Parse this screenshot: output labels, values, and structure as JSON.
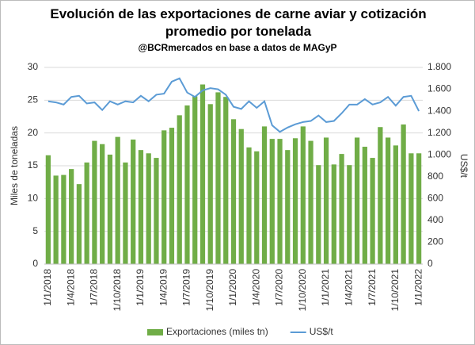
{
  "chart_data": {
    "type": "bar_line",
    "title": "Evolución de las exportaciones de carne aviar y cotización promedio por tonelada",
    "subtitle": "@BCRmercados en base a datos de MAGyP",
    "y_label": "Miles de toneladas",
    "y2_label": "US$/t",
    "categories": [
      "1/1/2018",
      null,
      null,
      "1/4/2018",
      null,
      null,
      "1/7/2018",
      null,
      null,
      "1/10/2018",
      null,
      null,
      "1/1/2019",
      null,
      null,
      "1/4/2019",
      null,
      null,
      "1/7/2019",
      null,
      null,
      "1/10/2019",
      null,
      null,
      "1/1/2020",
      null,
      null,
      "1/4/2020",
      null,
      null,
      "1/7/2020",
      null,
      null,
      "1/10/2020",
      null,
      null,
      "1/1/2021",
      null,
      null,
      "1/4/2021",
      null,
      null,
      "1/7/2021",
      null,
      null,
      "1/10/2021",
      null,
      null,
      "1/1/2022"
    ],
    "series": [
      {
        "name": "Exportaciones (miles tn)",
        "color": "#70ad47",
        "kind": "bar",
        "values": [
          16.6,
          13.5,
          13.6,
          14.5,
          12.2,
          15.5,
          18.8,
          18.3,
          16.7,
          19.4,
          15.5,
          19.0,
          17.4,
          16.9,
          16.2,
          20.4,
          20.8,
          22.7,
          24.2,
          25.6,
          27.4,
          24.4,
          26.2,
          25.5,
          22.1,
          20.6,
          17.8,
          17.2,
          21.0,
          19.1,
          19.1,
          17.4,
          19.2,
          21.0,
          18.8,
          15.1,
          19.3,
          15.2,
          16.8,
          15.1,
          19.3,
          17.9,
          16.2,
          20.9,
          19.3,
          18.1,
          21.3,
          16.9,
          16.9
        ]
      },
      {
        "name": "US$/t",
        "color": "#5b9bd5",
        "kind": "line",
        "axis": "y2",
        "values": [
          1490,
          1480,
          1460,
          1530,
          1540,
          1470,
          1480,
          1410,
          1490,
          1460,
          1490,
          1480,
          1540,
          1490,
          1550,
          1560,
          1670,
          1700,
          1570,
          1530,
          1590,
          1610,
          1600,
          1550,
          1440,
          1420,
          1490,
          1430,
          1490,
          1270,
          1210,
          1250,
          1280,
          1300,
          1310,
          1360,
          1300,
          1310,
          1380,
          1460,
          1460,
          1510,
          1460,
          1480,
          1530,
          1450,
          1530,
          1540,
          1400
        ]
      }
    ],
    "ylim": [
      0,
      30
    ],
    "yticks": [
      0,
      5,
      10,
      15,
      20,
      25,
      30
    ],
    "y2lim": [
      0,
      1800
    ],
    "y2ticks": [
      0,
      200,
      400,
      600,
      800,
      {
        "value": 1000,
        "label": "1.000"
      },
      {
        "value": 1200,
        "label": "1.200"
      },
      {
        "value": 1400,
        "label": "1.400"
      },
      {
        "value": 1600,
        "label": "1.600"
      },
      {
        "value": 1800,
        "label": "1.800"
      }
    ],
    "grid": true,
    "legend": "bottom"
  }
}
